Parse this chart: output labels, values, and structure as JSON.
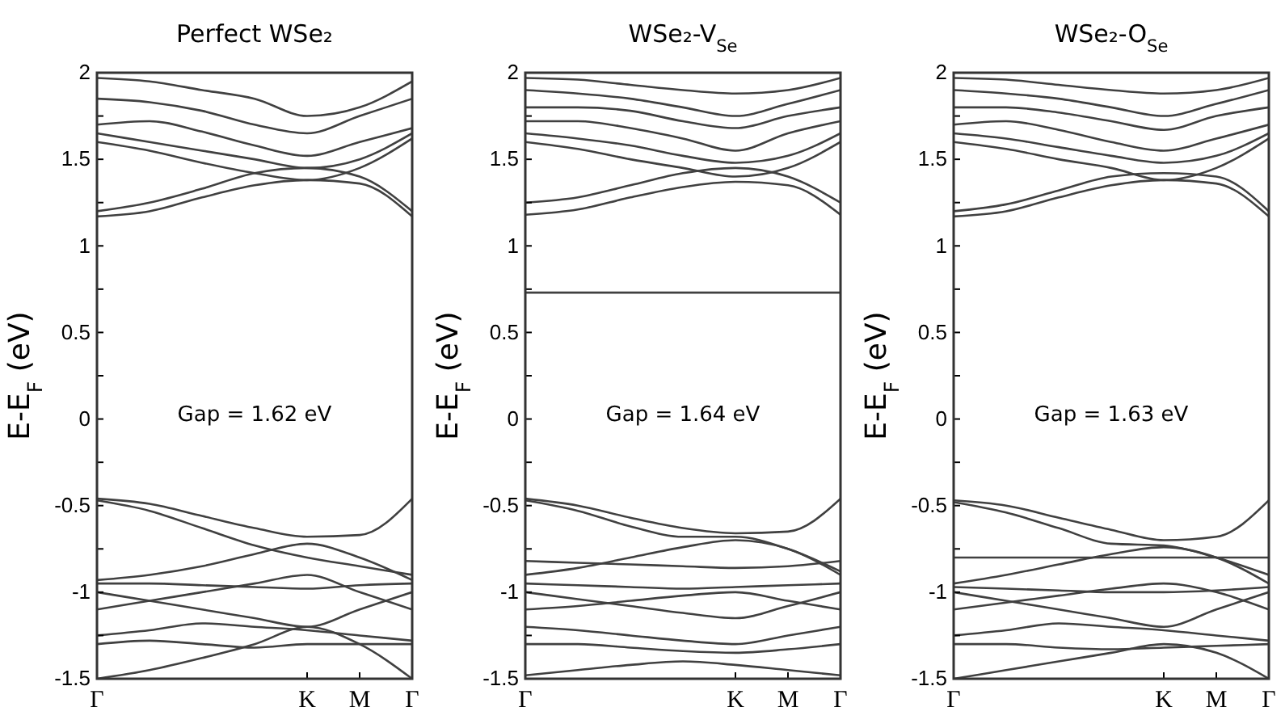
{
  "chart_data": [
    {
      "type": "line",
      "title": "Perfect WSe₂",
      "ylabel": "E-E$_{F}$ (eV)",
      "annotations": [
        "Gap = 1.62 eV"
      ],
      "categories": [
        "Γ",
        null,
        null,
        null,
        "K",
        "M",
        "Γ"
      ],
      "ylim": [
        -1.5,
        2
      ],
      "yticks": [
        -1.5,
        {
          "value": -1.25,
          "label": null
        },
        -1,
        {
          "value": -0.75,
          "label": null
        },
        -0.5,
        {
          "value": -0.25,
          "label": null
        },
        0,
        {
          "value": 0.25,
          "label": null
        },
        0.5,
        {
          "value": 0.75,
          "label": null
        },
        1,
        {
          "value": 1.25,
          "label": null
        },
        1.5,
        {
          "value": 1.75,
          "label": null
        },
        2
      ],
      "series": [
        {
          "color": "#404040",
          "values": [
            -0.46,
            -0.49,
            -0.56,
            -0.63,
            -0.68,
            -0.67,
            -0.46
          ]
        },
        {
          "color": "#404040",
          "values": [
            -0.47,
            -0.53,
            -0.63,
            -0.73,
            -0.8,
            -0.85,
            -0.9
          ]
        },
        {
          "color": "#404040",
          "values": [
            -0.93,
            -0.9,
            -0.85,
            -0.78,
            -0.72,
            -0.8,
            -0.93
          ]
        },
        {
          "color": "#404040",
          "values": [
            -0.95,
            -0.95,
            -0.96,
            -0.97,
            -0.98,
            -0.96,
            -0.95
          ]
        },
        {
          "color": "#404040",
          "values": [
            -1.0,
            -1.05,
            -1.1,
            -1.15,
            -1.2,
            -1.1,
            -1.0
          ]
        },
        {
          "color": "#404040",
          "values": [
            -1.1,
            -1.05,
            -1.0,
            -0.95,
            -0.9,
            -1.0,
            -1.1
          ]
        },
        {
          "color": "#404040",
          "values": [
            -1.25,
            -1.22,
            -1.18,
            -1.2,
            -1.22,
            -1.25,
            -1.28
          ]
        },
        {
          "color": "#404040",
          "values": [
            -1.3,
            -1.28,
            -1.3,
            -1.32,
            -1.3,
            -1.3,
            -1.3
          ]
        },
        {
          "color": "#404040",
          "values": [
            -1.5,
            -1.45,
            -1.38,
            -1.3,
            -1.2,
            -1.3,
            -1.5
          ]
        },
        {
          "color": "#404040",
          "values": [
            1.17,
            1.2,
            1.28,
            1.35,
            1.38,
            1.36,
            1.17
          ]
        },
        {
          "color": "#404040",
          "values": [
            1.2,
            1.25,
            1.33,
            1.42,
            1.45,
            1.4,
            1.2
          ]
        },
        {
          "color": "#404040",
          "values": [
            1.6,
            1.55,
            1.48,
            1.42,
            1.38,
            1.45,
            1.62
          ]
        },
        {
          "color": "#404040",
          "values": [
            1.65,
            1.6,
            1.55,
            1.5,
            1.45,
            1.5,
            1.65
          ]
        },
        {
          "color": "#404040",
          "values": [
            1.7,
            1.72,
            1.66,
            1.58,
            1.52,
            1.6,
            1.68
          ]
        },
        {
          "color": "#404040",
          "values": [
            1.85,
            1.83,
            1.78,
            1.7,
            1.65,
            1.75,
            1.85
          ]
        },
        {
          "color": "#404040",
          "values": [
            1.97,
            1.95,
            1.9,
            1.85,
            1.75,
            1.8,
            1.95
          ]
        }
      ]
    },
    {
      "type": "line",
      "title": "WSe₂-V$_{Se}$",
      "ylabel": "E-E$_{F}$ (eV)",
      "annotations": [
        "Gap = 1.64 eV"
      ],
      "categories": [
        "Γ",
        null,
        null,
        null,
        "K",
        "M",
        "Γ"
      ],
      "ylim": [
        -1.5,
        2
      ],
      "yticks": [
        -1.5,
        {
          "value": -1.25,
          "label": null
        },
        -1,
        {
          "value": -0.75,
          "label": null
        },
        -0.5,
        {
          "value": -0.25,
          "label": null
        },
        0,
        {
          "value": 0.25,
          "label": null
        },
        0.5,
        {
          "value": 0.75,
          "label": null
        },
        1,
        {
          "value": 1.25,
          "label": null
        },
        1.5,
        {
          "value": 1.75,
          "label": null
        },
        2
      ],
      "series": [
        {
          "color": "#404040",
          "values": [
            0.73,
            0.73,
            0.73,
            0.73,
            0.73,
            0.73,
            0.73
          ]
        },
        {
          "color": "#404040",
          "values": [
            -0.46,
            -0.5,
            -0.57,
            -0.63,
            -0.66,
            -0.65,
            -0.46
          ]
        },
        {
          "color": "#404040",
          "values": [
            -0.47,
            -0.53,
            -0.62,
            -0.68,
            -0.68,
            -0.75,
            -0.88
          ]
        },
        {
          "color": "#404040",
          "values": [
            -0.9,
            -0.86,
            -0.8,
            -0.74,
            -0.7,
            -0.75,
            -0.9
          ]
        },
        {
          "color": "#404040",
          "values": [
            -0.82,
            -0.83,
            -0.84,
            -0.85,
            -0.86,
            -0.85,
            -0.82
          ]
        },
        {
          "color": "#404040",
          "values": [
            -0.95,
            -0.96,
            -0.97,
            -0.98,
            -0.97,
            -0.96,
            -0.95
          ]
        },
        {
          "color": "#404040",
          "values": [
            -1.0,
            -1.04,
            -1.08,
            -1.12,
            -1.15,
            -1.08,
            -1.0
          ]
        },
        {
          "color": "#404040",
          "values": [
            -1.1,
            -1.08,
            -1.05,
            -1.02,
            -1.0,
            -1.05,
            -1.1
          ]
        },
        {
          "color": "#404040",
          "values": [
            -1.2,
            -1.22,
            -1.25,
            -1.28,
            -1.3,
            -1.25,
            -1.2
          ]
        },
        {
          "color": "#404040",
          "values": [
            -1.3,
            -1.3,
            -1.32,
            -1.34,
            -1.35,
            -1.33,
            -1.3
          ]
        },
        {
          "color": "#404040",
          "values": [
            -1.48,
            -1.45,
            -1.42,
            -1.4,
            -1.42,
            -1.45,
            -1.48
          ]
        },
        {
          "color": "#404040",
          "values": [
            1.18,
            1.21,
            1.28,
            1.34,
            1.37,
            1.35,
            1.18
          ]
        },
        {
          "color": "#404040",
          "values": [
            1.25,
            1.28,
            1.35,
            1.42,
            1.45,
            1.4,
            1.25
          ]
        },
        {
          "color": "#404040",
          "values": [
            1.6,
            1.56,
            1.5,
            1.45,
            1.4,
            1.45,
            1.6
          ]
        },
        {
          "color": "#404040",
          "values": [
            1.65,
            1.62,
            1.58,
            1.52,
            1.48,
            1.52,
            1.65
          ]
        },
        {
          "color": "#404040",
          "values": [
            1.72,
            1.72,
            1.68,
            1.62,
            1.55,
            1.65,
            1.72
          ]
        },
        {
          "color": "#404040",
          "values": [
            1.8,
            1.8,
            1.78,
            1.72,
            1.68,
            1.75,
            1.8
          ]
        },
        {
          "color": "#404040",
          "values": [
            1.9,
            1.88,
            1.85,
            1.8,
            1.75,
            1.82,
            1.9
          ]
        },
        {
          "color": "#404040",
          "values": [
            1.97,
            1.96,
            1.93,
            1.9,
            1.88,
            1.9,
            1.97
          ]
        }
      ]
    },
    {
      "type": "line",
      "title": "WSe₂-O$_{Se}$",
      "ylabel": "E-E$_{F}$ (eV)",
      "annotations": [
        "Gap = 1.63 eV"
      ],
      "categories": [
        "Γ",
        null,
        null,
        null,
        "K",
        "M",
        "Γ"
      ],
      "ylim": [
        -1.5,
        2
      ],
      "yticks": [
        -1.5,
        {
          "value": -1.25,
          "label": null
        },
        -1,
        {
          "value": -0.75,
          "label": null
        },
        -0.5,
        {
          "value": -0.25,
          "label": null
        },
        0,
        {
          "value": 0.25,
          "label": null
        },
        0.5,
        {
          "value": 0.75,
          "label": null
        },
        1,
        {
          "value": 1.25,
          "label": null
        },
        1.5,
        {
          "value": 1.75,
          "label": null
        },
        2
      ],
      "series": [
        {
          "color": "#404040",
          "values": [
            -0.47,
            -0.5,
            -0.57,
            -0.64,
            -0.7,
            -0.68,
            -0.47
          ]
        },
        {
          "color": "#404040",
          "values": [
            -0.48,
            -0.54,
            -0.63,
            -0.72,
            -0.73,
            -0.8,
            -0.9
          ]
        },
        {
          "color": "#404040",
          "values": [
            -0.8,
            -0.8,
            -0.8,
            -0.8,
            -0.8,
            -0.8,
            -0.8
          ]
        },
        {
          "color": "#404040",
          "values": [
            -0.95,
            -0.9,
            -0.84,
            -0.78,
            -0.74,
            -0.8,
            -0.95
          ]
        },
        {
          "color": "#404040",
          "values": [
            -0.97,
            -0.98,
            -0.99,
            -1.0,
            -1.0,
            -0.99,
            -0.97
          ]
        },
        {
          "color": "#404040",
          "values": [
            -1.0,
            -1.05,
            -1.1,
            -1.15,
            -1.2,
            -1.1,
            -1.0
          ]
        },
        {
          "color": "#404040",
          "values": [
            -1.1,
            -1.06,
            -1.02,
            -0.98,
            -0.95,
            -1.0,
            -1.1
          ]
        },
        {
          "color": "#404040",
          "values": [
            -1.25,
            -1.22,
            -1.18,
            -1.2,
            -1.22,
            -1.25,
            -1.28
          ]
        },
        {
          "color": "#404040",
          "values": [
            -1.3,
            -1.3,
            -1.32,
            -1.33,
            -1.32,
            -1.31,
            -1.3
          ]
        },
        {
          "color": "#404040",
          "values": [
            -1.5,
            -1.45,
            -1.4,
            -1.35,
            -1.3,
            -1.35,
            -1.5
          ]
        },
        {
          "color": "#404040",
          "values": [
            1.17,
            1.2,
            1.28,
            1.35,
            1.38,
            1.36,
            1.17
          ]
        },
        {
          "color": "#404040",
          "values": [
            1.2,
            1.24,
            1.32,
            1.4,
            1.42,
            1.4,
            1.2
          ]
        },
        {
          "color": "#404040",
          "values": [
            1.6,
            1.56,
            1.5,
            1.45,
            1.38,
            1.45,
            1.62
          ]
        },
        {
          "color": "#404040",
          "values": [
            1.65,
            1.62,
            1.57,
            1.52,
            1.48,
            1.52,
            1.65
          ]
        },
        {
          "color": "#404040",
          "values": [
            1.7,
            1.72,
            1.67,
            1.6,
            1.55,
            1.62,
            1.7
          ]
        },
        {
          "color": "#404040",
          "values": [
            1.8,
            1.8,
            1.77,
            1.72,
            1.67,
            1.75,
            1.8
          ]
        },
        {
          "color": "#404040",
          "values": [
            1.9,
            1.88,
            1.85,
            1.8,
            1.75,
            1.82,
            1.9
          ]
        },
        {
          "color": "#404040",
          "values": [
            1.97,
            1.96,
            1.93,
            1.9,
            1.88,
            1.9,
            1.97
          ]
        }
      ]
    }
  ]
}
